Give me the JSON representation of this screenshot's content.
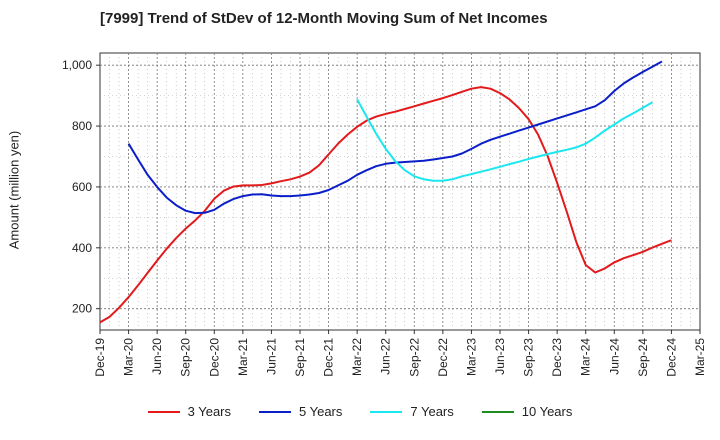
{
  "chart_data": {
    "type": "line",
    "title": "[7999]  Trend of StDev of 12-Month Moving Sum of Net Incomes",
    "ylabel": "Amount (million yen)",
    "xlabel": "",
    "x_ticks": [
      "Dec-19",
      "Mar-20",
      "Jun-20",
      "Sep-20",
      "Dec-20",
      "Mar-21",
      "Jun-21",
      "Sep-21",
      "Dec-21",
      "Mar-22",
      "Jun-22",
      "Sep-22",
      "Dec-22",
      "Mar-23",
      "Jun-23",
      "Sep-23",
      "Dec-23",
      "Mar-24",
      "Jun-24",
      "Sep-24",
      "Dec-24",
      "Mar-25"
    ],
    "y_ticks": [
      200,
      400,
      600,
      800,
      "1,000"
    ],
    "ylim": [
      130,
      1040
    ],
    "grid": true,
    "legend_position": "bottom",
    "series": [
      {
        "name": "3 Years",
        "color": "#e31a1c",
        "values": [
          155,
          175,
          210,
          250,
          295,
          340,
          385,
          425,
          460,
          490,
          525,
          570,
          595,
          605,
          605,
          605,
          610,
          618,
          625,
          635,
          650,
          680,
          725,
          760,
          790,
          815,
          830,
          840,
          848,
          858,
          868,
          878,
          888,
          898,
          910,
          922,
          928,
          922,
          905,
          880,
          845,
          800,
          730,
          635,
          530,
          420,
          335,
          315,
          340,
          360,
          372,
          382,
          398,
          412,
          425
        ]
      },
      {
        "name": "5 Years",
        "color": "#0b1fc9",
        "values": [
          null,
          null,
          null,
          null,
          null,
          null,
          null,
          null,
          null,
          null,
          null,
          null,
          null,
          null,
          null,
          null,
          null,
          null,
          null,
          null,
          null,
          null,
          null,
          null,
          null,
          null,
          null,
          null,
          null,
          null,
          null,
          null,
          null,
          null,
          null,
          null,
          null,
          null,
          null,
          null,
          null,
          null,
          null,
          null,
          null,
          null,
          null,
          null,
          null,
          null,
          null,
          null,
          null,
          null,
          null
        ]
      },
      {
        "name": "7 Years",
        "color": "#19e8f0",
        "values": [
          null,
          null,
          null,
          null,
          null,
          null,
          null,
          null,
          null,
          null,
          null,
          null,
          null,
          null,
          null,
          null,
          null,
          null,
          null,
          null,
          null,
          null,
          null,
          null,
          null,
          null,
          null,
          null,
          null,
          null,
          null,
          null,
          null,
          null,
          null,
          null,
          null,
          null,
          null,
          null,
          null,
          null,
          null,
          null,
          null,
          null,
          null,
          null,
          null,
          null,
          null,
          null,
          null,
          null,
          null
        ]
      },
      {
        "name": "10 Years",
        "color": "#1e8c1e",
        "values": []
      }
    ]
  }
}
